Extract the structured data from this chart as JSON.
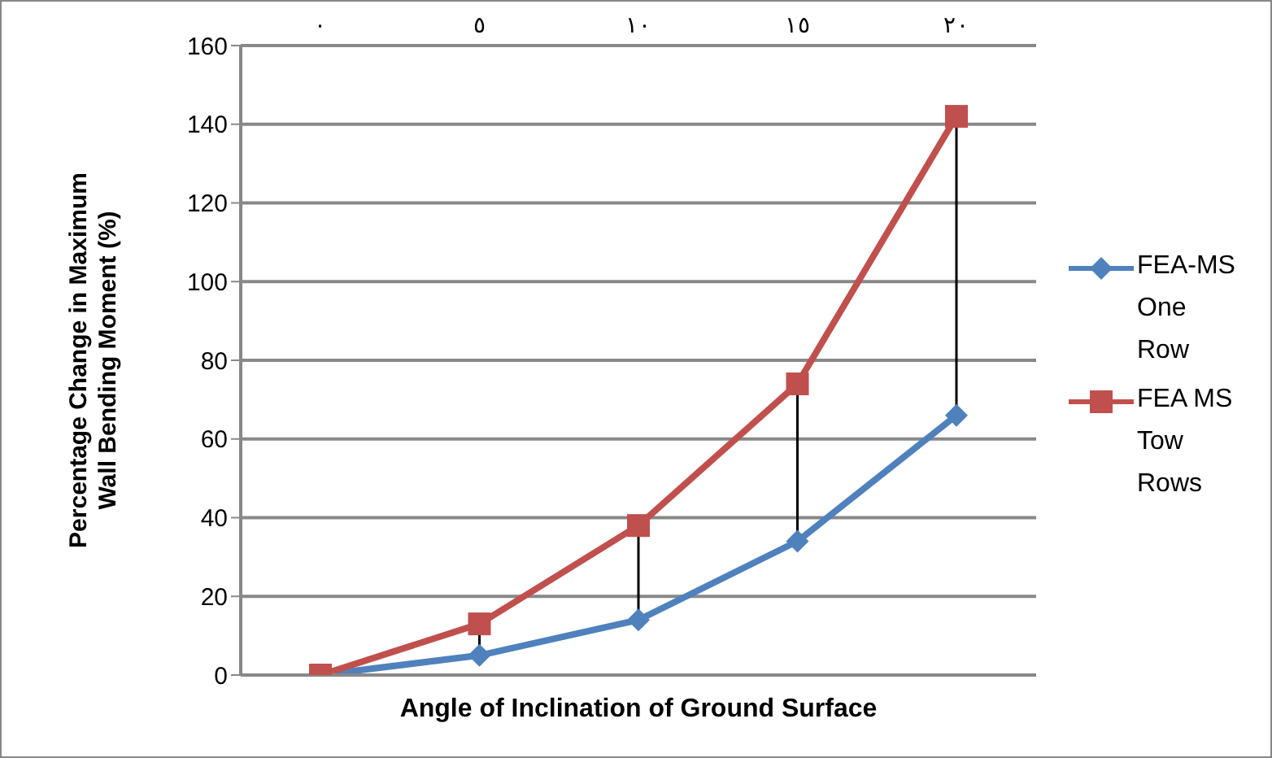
{
  "chart_data": {
    "type": "line",
    "xlabel": "Angle of Inclination of Ground Surface",
    "ylabel": "Percentage Change in Maximum Wall Bending Moment (%)",
    "categories": [
      "٠",
      "٥",
      "١٠",
      "١٥",
      "٢٠"
    ],
    "series": [
      {
        "name": "FEA-MS One Row",
        "color": "#4f81bd",
        "marker": "diamond",
        "values": [
          0,
          5,
          14,
          34,
          66
        ]
      },
      {
        "name": "FEA MS Tow Rows",
        "color": "#c0504d",
        "marker": "square",
        "values": [
          0,
          13,
          38,
          74,
          142
        ]
      }
    ],
    "ylim": [
      0,
      160
    ],
    "yticks": [
      0,
      20,
      40,
      60,
      80,
      100,
      120,
      140,
      160
    ],
    "grid": "y",
    "legend": "right"
  }
}
